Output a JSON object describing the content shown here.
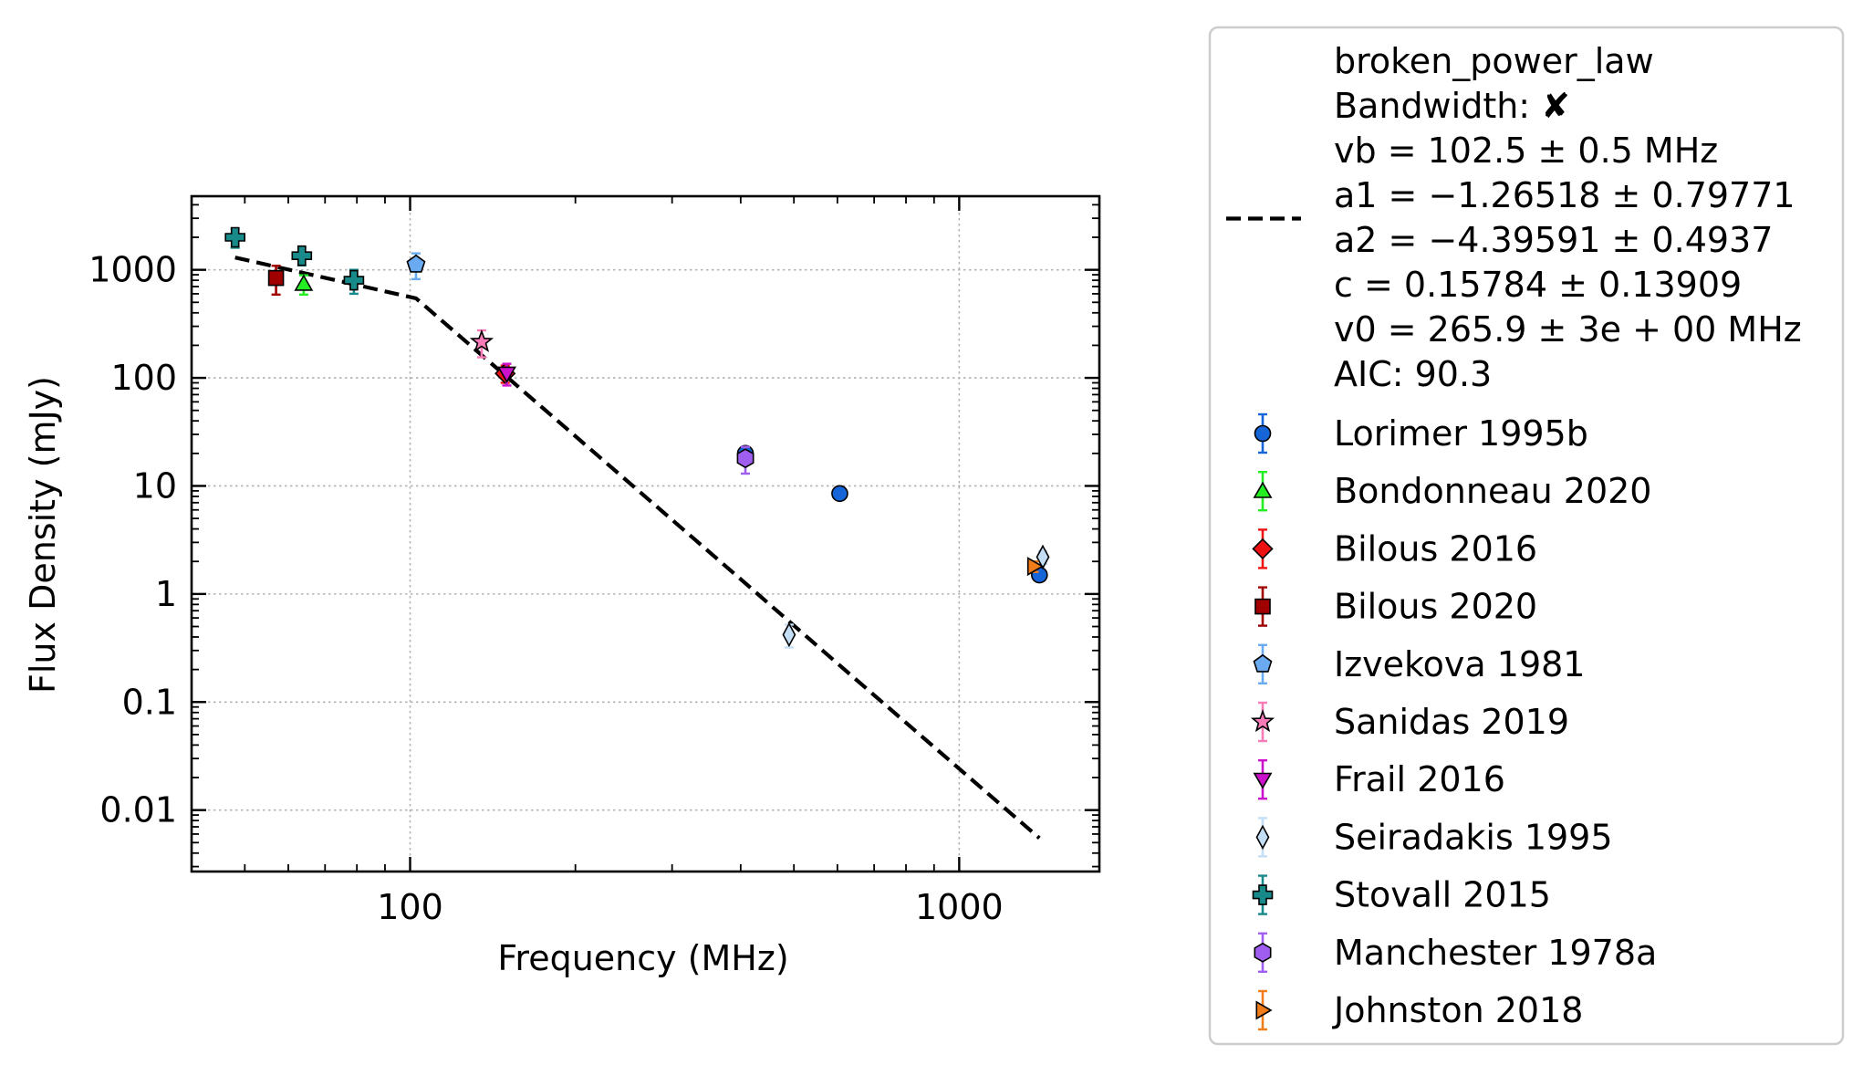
{
  "chart_data": {
    "type": "scatter",
    "title": "",
    "xlabel": "Frequency (MHz)",
    "ylabel": "Flux Density (mJy)",
    "x_scale": "log",
    "y_scale": "log",
    "xlim": [
      40,
      1800
    ],
    "ylim": [
      0.0027,
      4800
    ],
    "x_ticks": [
      {
        "value": 100,
        "label": "100"
      },
      {
        "value": 1000,
        "label": "1000"
      }
    ],
    "y_ticks": [
      {
        "value": 0.01,
        "label": "0.01"
      },
      {
        "value": 0.1,
        "label": "0.1"
      },
      {
        "value": 1,
        "label": "1"
      },
      {
        "value": 10,
        "label": "10"
      },
      {
        "value": 100,
        "label": "100"
      },
      {
        "value": 1000,
        "label": "1000"
      }
    ],
    "grid": true,
    "legend_position": "outside right",
    "fit": {
      "name": "broken_power_law",
      "style": "dashed",
      "color": "#000000",
      "legend_lines": [
        "broken_power_law",
        "Bandwidth: ✘",
        "vb = 102.5 ± 0.5 MHz",
        "a1 = −1.26518 ± 0.79771",
        "a2 = −4.39591 ± 0.4937",
        "c = 0.15784 ± 0.13909",
        "v0 = 265.9 ± 3e + 00 MHz",
        "AIC: 90.3"
      ],
      "points": [
        {
          "x": 48,
          "y": 1300
        },
        {
          "x": 102.5,
          "y": 545
        },
        {
          "x": 400,
          "y": 1.37
        },
        {
          "x": 600,
          "y": 0.228
        },
        {
          "x": 1400,
          "y": 0.0055
        }
      ]
    },
    "series": [
      {
        "name": "Lorimer 1995b",
        "marker": "circle",
        "color": "#1565d8",
        "errcolor": "#1565d8",
        "points": [
          {
            "x": 408,
            "y": 20,
            "err": 2
          },
          {
            "x": 606,
            "y": 8.5,
            "err": 0.8
          },
          {
            "x": 1400,
            "y": 1.5,
            "err": 0.15
          }
        ]
      },
      {
        "name": "Bondonneau 2020",
        "marker": "triangle-up",
        "color": "#22ee22",
        "errcolor": "#22ee22",
        "points": [
          {
            "x": 64,
            "y": 740,
            "err": 150
          }
        ]
      },
      {
        "name": "Bilous 2016",
        "marker": "diamond",
        "color": "#ee1111",
        "errcolor": "#ee1111",
        "points": [
          {
            "x": 149,
            "y": 110,
            "err": 20
          }
        ]
      },
      {
        "name": "Bilous 2020",
        "marker": "square",
        "color": "#a00000",
        "errcolor": "#a00000",
        "points": [
          {
            "x": 57,
            "y": 840,
            "err": 250
          }
        ]
      },
      {
        "name": "Izvekova 1981",
        "marker": "pentagon",
        "color": "#6aaaf0",
        "errcolor": "#6aaaf0",
        "points": [
          {
            "x": 102.5,
            "y": 1120,
            "err": 300
          }
        ]
      },
      {
        "name": "Sanidas 2019",
        "marker": "star",
        "color": "#f87ab8",
        "errcolor": "#f87ab8",
        "points": [
          {
            "x": 135,
            "y": 215,
            "err": 60
          }
        ]
      },
      {
        "name": "Frail 2016",
        "marker": "triangle-down",
        "color": "#cc11cc",
        "errcolor": "#cc11cc",
        "points": [
          {
            "x": 150,
            "y": 110,
            "err": 25
          }
        ]
      },
      {
        "name": "Seiradakis 1995",
        "marker": "thin-diamond",
        "color": "#c4def6",
        "errcolor": "#c4def6",
        "points": [
          {
            "x": 490,
            "y": 0.42,
            "err": 0.1
          },
          {
            "x": 1420,
            "y": 2.2,
            "err": 0.3
          }
        ]
      },
      {
        "name": "Stovall 2015",
        "marker": "plus",
        "color": "#188a8a",
        "errcolor": "#188a8a",
        "points": [
          {
            "x": 48,
            "y": 2000,
            "err": 400
          },
          {
            "x": 63.5,
            "y": 1350,
            "err": 250
          },
          {
            "x": 79,
            "y": 800,
            "err": 200
          }
        ]
      },
      {
        "name": "Manchester 1978a",
        "marker": "hexagon",
        "color": "#a05ef0",
        "errcolor": "#a05ef0",
        "points": [
          {
            "x": 408,
            "y": 18,
            "err": 5
          }
        ]
      },
      {
        "name": "Johnston 2018",
        "marker": "triangle-right",
        "color": "#f07d1a",
        "errcolor": "#f07d1a",
        "points": [
          {
            "x": 1369,
            "y": 1.8,
            "err": 0.2
          }
        ]
      }
    ]
  }
}
